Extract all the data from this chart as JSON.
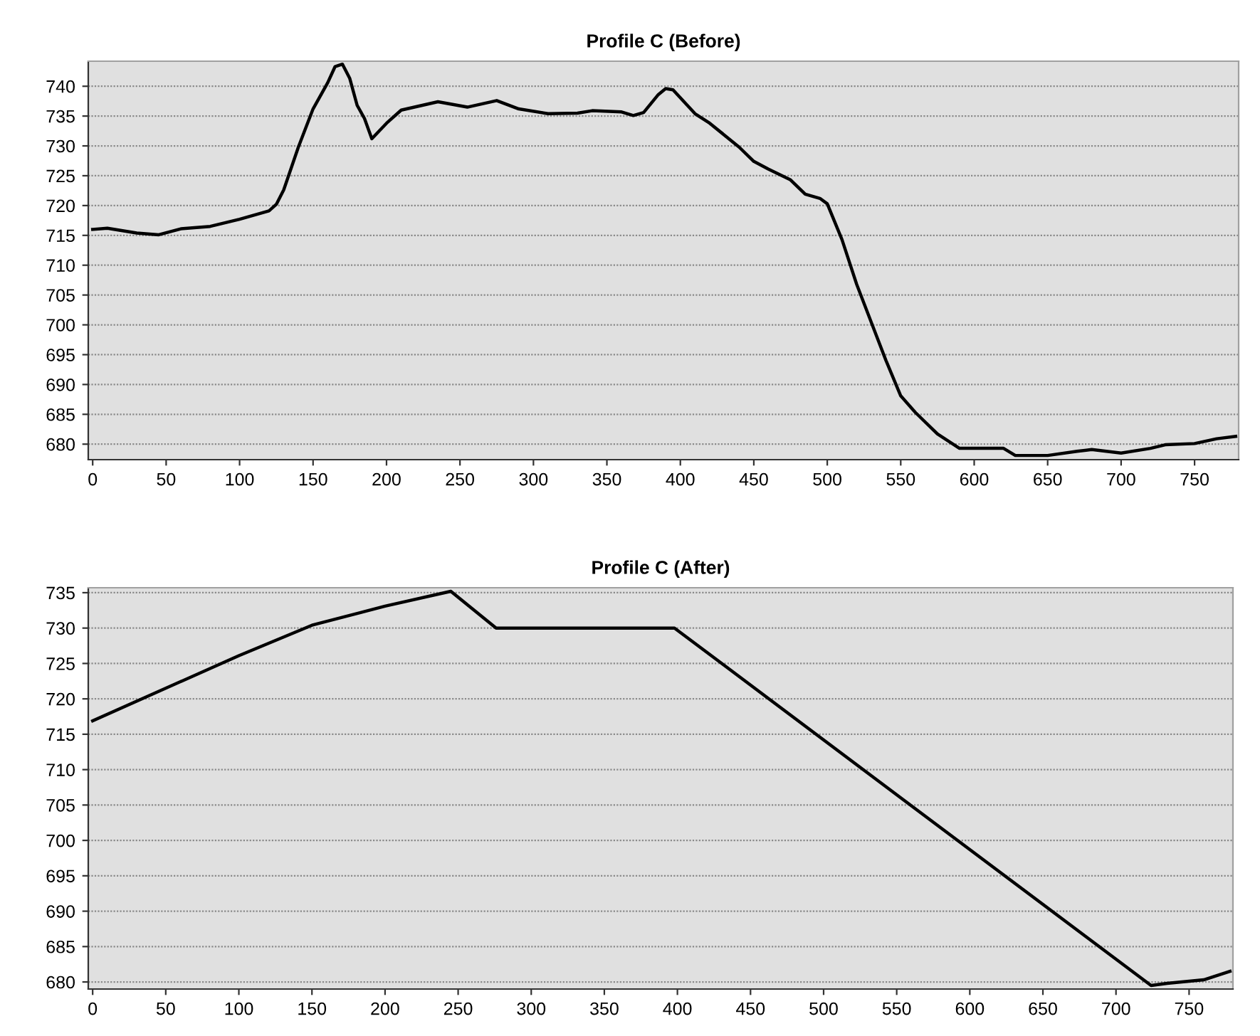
{
  "chart_data": [
    {
      "type": "line",
      "title": "Profile C (Before)",
      "xlim": [
        -3,
        780
      ],
      "ylim": [
        677.4,
        744.2
      ],
      "xticks": [
        0,
        50,
        100,
        150,
        200,
        250,
        300,
        350,
        400,
        450,
        500,
        550,
        600,
        650,
        700,
        750
      ],
      "yticks": [
        680,
        685,
        690,
        695,
        700,
        705,
        710,
        715,
        720,
        725,
        730,
        735,
        740
      ],
      "grid": "y",
      "legend": false,
      "series": [
        {
          "color": "#000000",
          "x": [
            0,
            10,
            30,
            45,
            60,
            80,
            100,
            120,
            125,
            130,
            140,
            150,
            160,
            165,
            170,
            175,
            180,
            185,
            190,
            200,
            210,
            235,
            255,
            275,
            290,
            310,
            330,
            340,
            360,
            368,
            375,
            385,
            390,
            395,
            410,
            420,
            430,
            440,
            450,
            460,
            475,
            485,
            495,
            500,
            510,
            520,
            530,
            540,
            550,
            560,
            575,
            590,
            615,
            620,
            628,
            650,
            670,
            680,
            700,
            720,
            730,
            750,
            765,
            778
          ],
          "values": [
            716,
            716.2,
            715.4,
            715.1,
            716.1,
            716.5,
            717.7,
            719.1,
            720.2,
            722.6,
            729.8,
            736.2,
            740.6,
            743.3,
            743.7,
            741.3,
            736.8,
            734.6,
            731.2,
            733.8,
            736,
            737.4,
            736.5,
            737.6,
            736.2,
            735.4,
            735.5,
            735.9,
            735.7,
            735.1,
            735.6,
            738.6,
            739.6,
            739.4,
            735.4,
            733.8,
            731.8,
            729.8,
            727.4,
            726.1,
            724.3,
            721.9,
            721.2,
            720.3,
            714.3,
            706.8,
            700.4,
            694,
            688.1,
            685.3,
            681.7,
            679.3,
            679.3,
            679.3,
            678.1,
            678.1,
            678.8,
            679.1,
            678.5,
            679.3,
            679.9,
            680.1,
            680.9,
            681.3
          ]
        }
      ]
    },
    {
      "type": "line",
      "title": "Profile C (After)",
      "xlim": [
        -3,
        780
      ],
      "ylim": [
        679,
        735.7
      ],
      "xticks": [
        0,
        50,
        100,
        150,
        200,
        250,
        300,
        350,
        400,
        450,
        500,
        550,
        600,
        650,
        700,
        750
      ],
      "yticks": [
        680,
        685,
        690,
        695,
        700,
        705,
        710,
        715,
        720,
        725,
        730,
        735
      ],
      "grid": "y",
      "legend": false,
      "series": [
        {
          "color": "#000000",
          "x": [
            0,
            100,
            150,
            200,
            245,
            276,
            398,
            724,
            735,
            760,
            778
          ],
          "values": [
            716.9,
            726.1,
            730.4,
            733.1,
            735.2,
            730,
            730,
            679.5,
            679.8,
            680.3,
            681.5
          ]
        }
      ]
    }
  ]
}
